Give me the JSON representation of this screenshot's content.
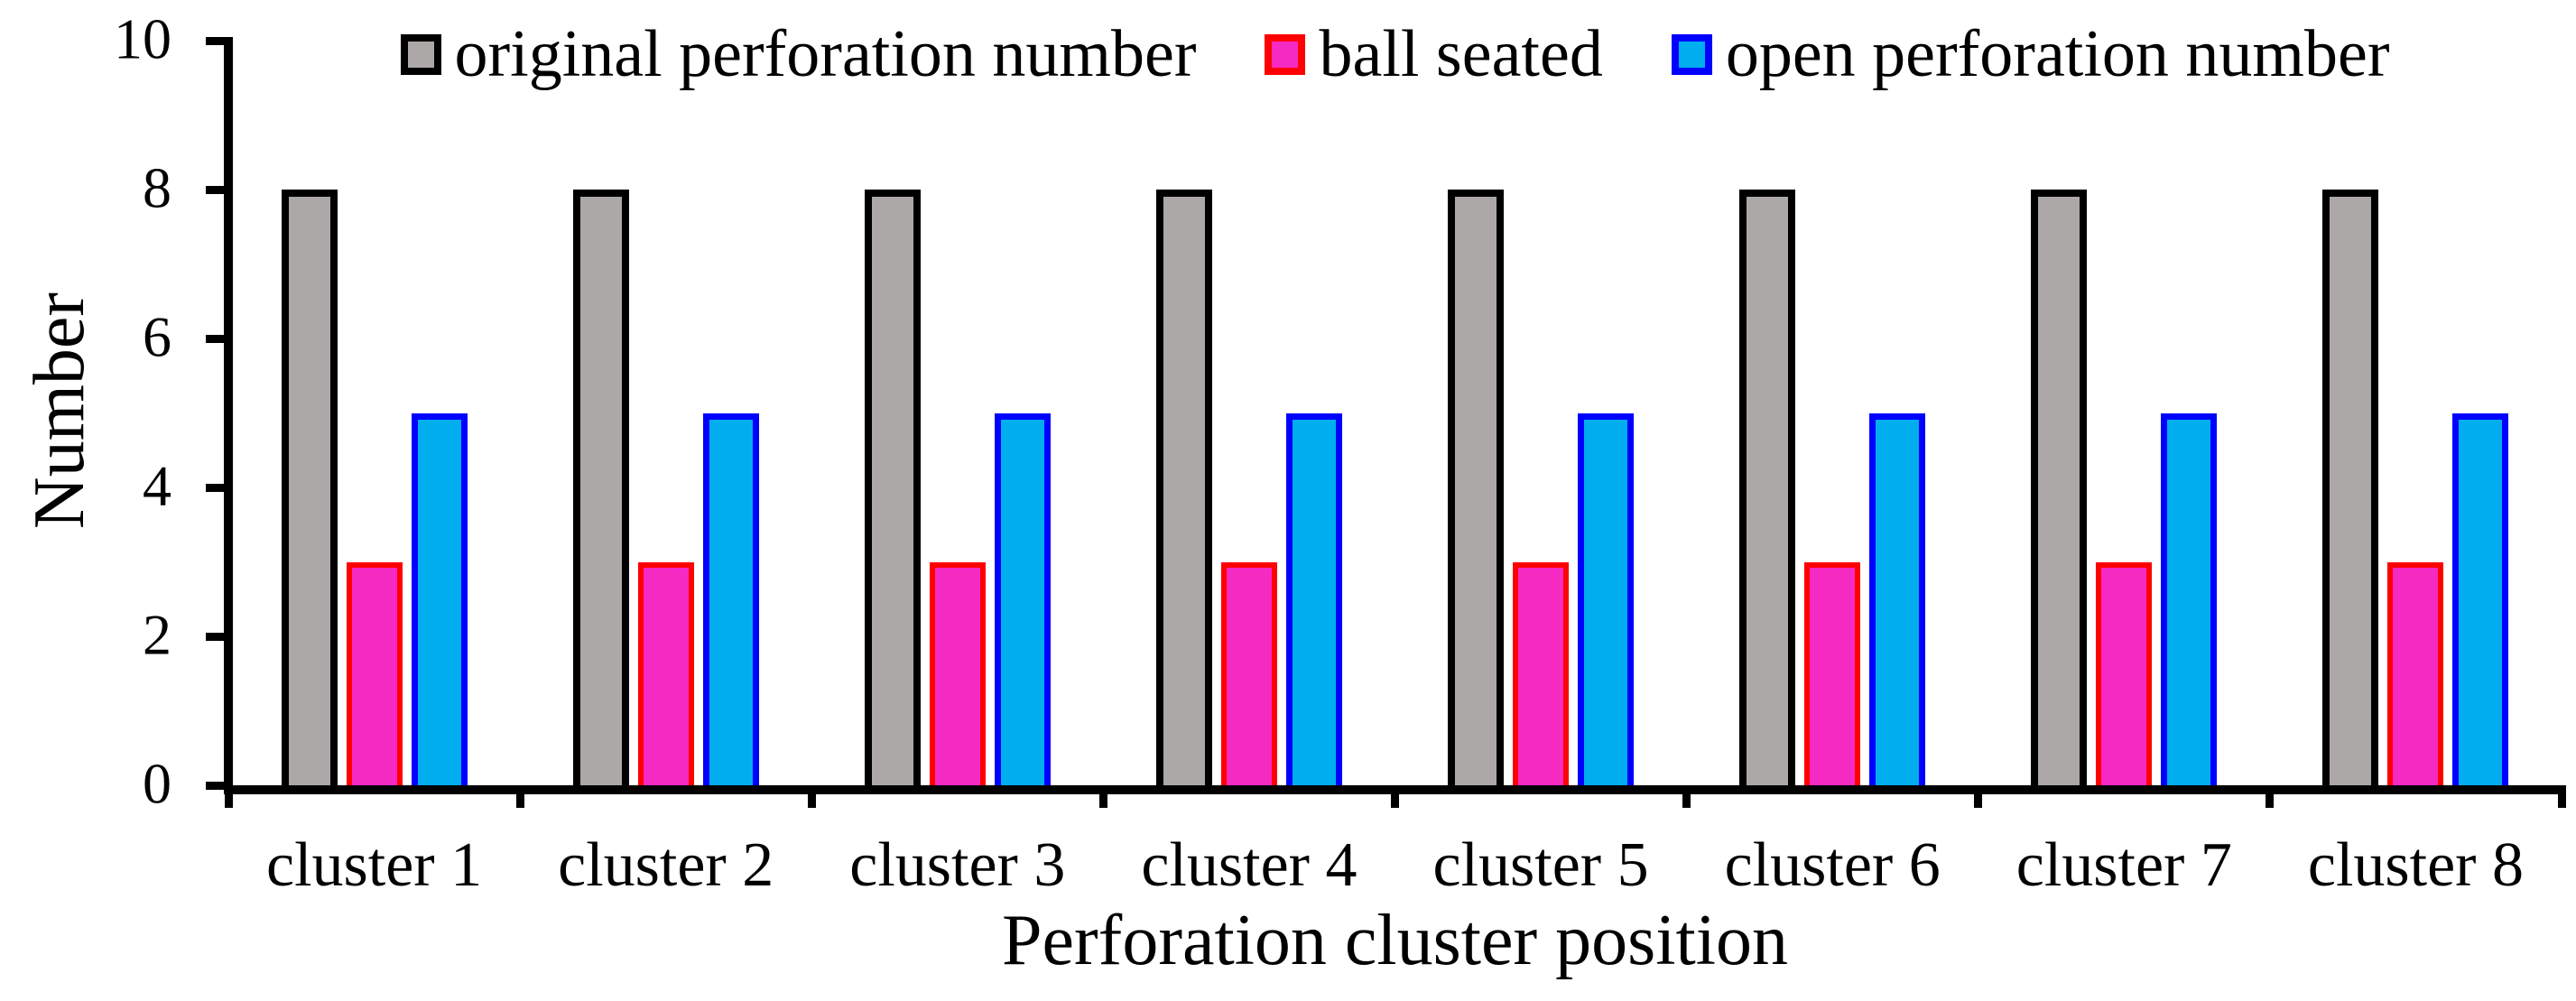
{
  "figure": {
    "background": "#FFFFFF",
    "text_color": "#000000",
    "axis_color": "#000000"
  },
  "legend": {
    "position": "top",
    "items": [
      {
        "label": "original perforation number",
        "fill": "#ACA8A8",
        "border": "#000000"
      },
      {
        "label": "ball seated",
        "fill": "#F42AC3",
        "border": "#FF0000"
      },
      {
        "label": "open perforation number",
        "fill": "#00AEEF",
        "border": "#0000FF"
      }
    ]
  },
  "chart_data": {
    "type": "bar",
    "title": "",
    "xlabel": "Perforation cluster position",
    "ylabel": "Number",
    "categories": [
      "cluster 1",
      "cluster 2",
      "cluster 3",
      "cluster 4",
      "cluster 5",
      "cluster 6",
      "cluster 7",
      "cluster 8"
    ],
    "series": [
      {
        "name": "original perforation number",
        "values": [
          8,
          8,
          8,
          8,
          8,
          8,
          8,
          8
        ],
        "fill": "#ACA8A8",
        "border": "#000000"
      },
      {
        "name": "ball seated",
        "values": [
          3,
          3,
          3,
          3,
          3,
          3,
          3,
          3
        ],
        "fill": "#F42AC3",
        "border": "#FF0000"
      },
      {
        "name": "open perforation number",
        "values": [
          5,
          5,
          5,
          5,
          5,
          5,
          5,
          5
        ],
        "fill": "#00AEEF",
        "border": "#0000FF"
      }
    ],
    "ylim": [
      0,
      10
    ],
    "yticks": [
      0,
      2,
      4,
      6,
      8,
      10
    ],
    "grid": false,
    "legend_position": "top"
  }
}
